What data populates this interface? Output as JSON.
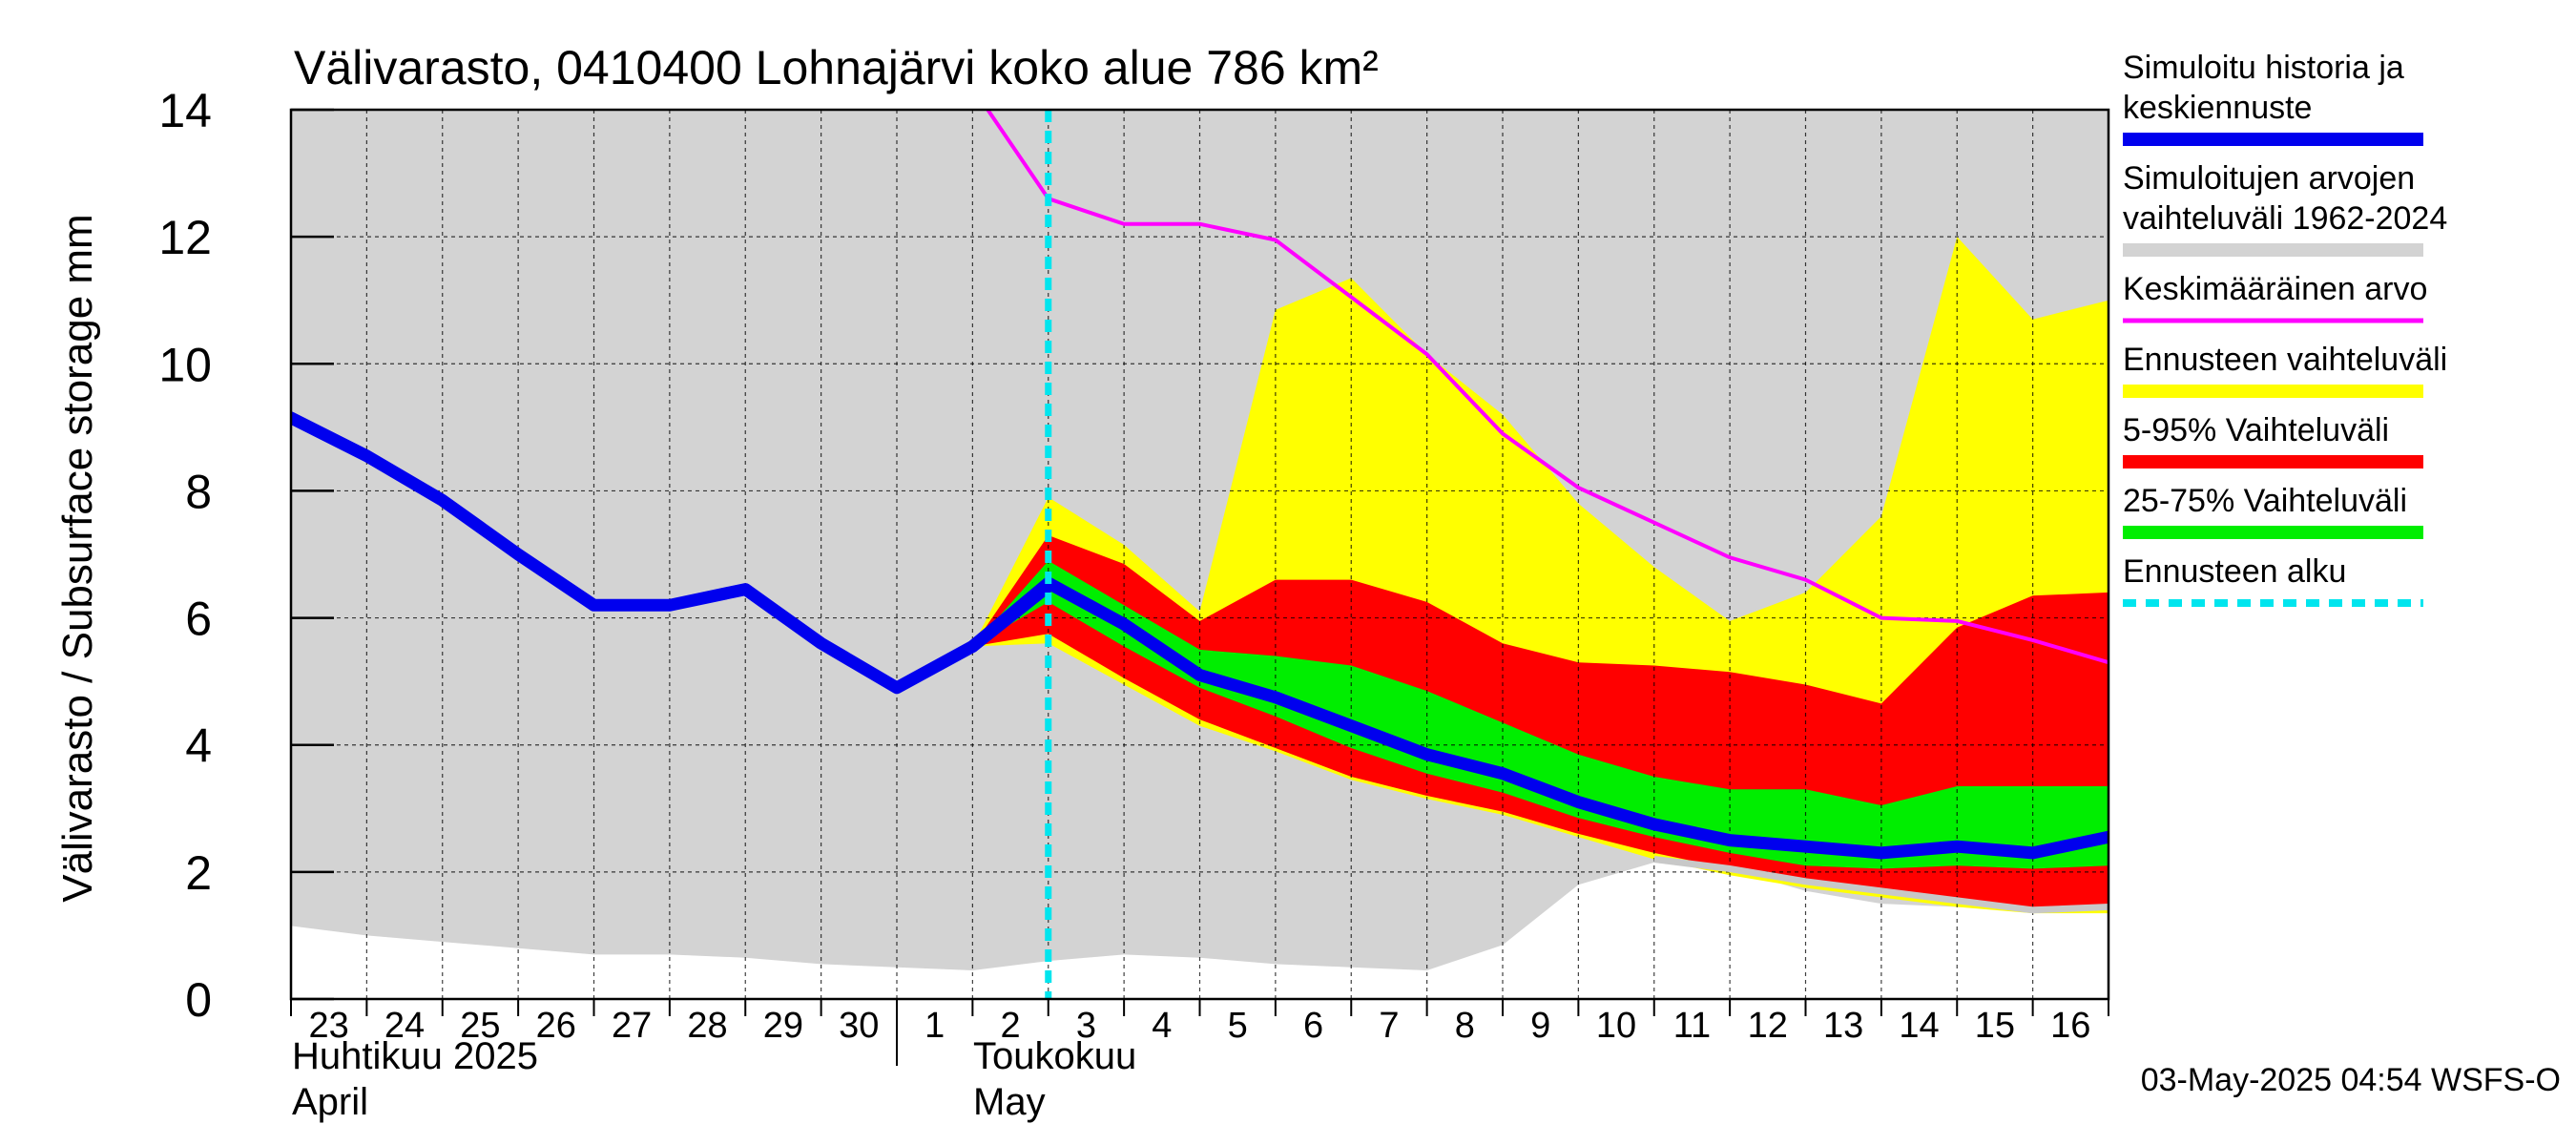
{
  "chart_data": {
    "type": "area",
    "title": "Välivarasto, 0410400 Lohnajärvi koko alue 786 km²",
    "ylabel": "Välivarasto / Subsurface storage  mm",
    "ylim": [
      0,
      14
    ],
    "yticks": [
      0,
      2,
      4,
      6,
      8,
      10,
      12,
      14
    ],
    "x_day_index_range": [
      0,
      24
    ],
    "x_tick_labels": [
      "23",
      "24",
      "25",
      "26",
      "27",
      "28",
      "29",
      "30",
      "1",
      "2",
      "3",
      "4",
      "5",
      "6",
      "7",
      "8",
      "9",
      "10",
      "11",
      "12",
      "13",
      "14",
      "15",
      "16"
    ],
    "month_labels": {
      "april_fi": "Huhtikuu  2025",
      "april_en": "April",
      "may_fi": "Toukokuu",
      "may_en": "May"
    },
    "month_boundary_day": 8,
    "forecast_start_day": 10,
    "timestamp": "03-May-2025 04:54 WSFS-O",
    "colors": {
      "history_range": "#d3d3d3",
      "forecast_range": "#ffff00",
      "p5_95": "#ff0000",
      "p25_75": "#00ee00",
      "median": "#0000ee",
      "mean": "#ff00ff",
      "forecast_start": "#00e5ee",
      "min_line": "#c8c8c8"
    },
    "legend": [
      {
        "label": "Simuloitu historia ja keskiennuste",
        "color": "#0000ee",
        "style": "thick"
      },
      {
        "label": "Simuloitujen arvojen vaihteluväli 1962-2024",
        "color": "#d3d3d3",
        "style": "thick"
      },
      {
        "label": "Keskimääräinen arvo",
        "color": "#ff00ff",
        "style": "thin"
      },
      {
        "label": "Ennusteen vaihteluväli",
        "color": "#ffff00",
        "style": "thick"
      },
      {
        "label": "5-95% Vaihteluväli",
        "color": "#ff0000",
        "style": "thick"
      },
      {
        "label": "25-75% Vaihteluväli",
        "color": "#00ee00",
        "style": "thick"
      },
      {
        "label": "Ennusteen alku",
        "color": "#00e5ee",
        "style": "dashed"
      }
    ],
    "series": {
      "history_range": {
        "x": [
          0,
          1,
          2,
          3,
          4,
          5,
          6,
          7,
          8,
          9,
          10,
          11,
          12,
          13,
          14,
          15,
          16,
          17,
          18,
          19,
          20,
          21,
          22,
          23,
          24
        ],
        "lower": [
          1.15,
          1.0,
          0.9,
          0.8,
          0.7,
          0.7,
          0.65,
          0.55,
          0.5,
          0.45,
          0.6,
          0.7,
          0.65,
          0.55,
          0.5,
          0.45,
          0.85,
          1.8,
          2.15,
          2.05,
          1.7,
          1.5,
          1.45,
          1.4,
          1.5
        ],
        "upper": [
          14,
          14,
          14,
          14,
          14,
          14,
          14,
          14,
          14,
          14,
          14,
          14,
          14,
          14,
          14,
          14,
          14,
          14,
          14,
          14,
          14,
          14,
          14,
          14,
          14
        ]
      },
      "history_median": {
        "x": [
          0,
          1,
          2,
          3,
          4,
          5,
          6,
          7,
          8,
          9,
          10
        ],
        "y": [
          9.15,
          8.55,
          7.85,
          7.0,
          6.2,
          6.2,
          6.45,
          5.6,
          4.9,
          5.55,
          6.5
        ]
      },
      "forecast_range": {
        "x": [
          9,
          10,
          11,
          12,
          13,
          14,
          15,
          16,
          17,
          18,
          19,
          20,
          21,
          22,
          23,
          24
        ],
        "lower": [
          5.55,
          5.6,
          4.95,
          4.3,
          3.9,
          3.45,
          3.15,
          2.9,
          2.55,
          2.2,
          1.95,
          1.75,
          1.6,
          1.45,
          1.35,
          1.35
        ],
        "upper": [
          5.55,
          7.9,
          7.15,
          6.1,
          10.85,
          11.35,
          10.15,
          9.2,
          7.8,
          6.8,
          5.95,
          6.4,
          7.6,
          12.0,
          10.7,
          11.0
        ]
      },
      "p5_95": {
        "x": [
          9,
          10,
          11,
          12,
          13,
          14,
          15,
          16,
          17,
          18,
          19,
          20,
          21,
          22,
          23,
          24
        ],
        "lower": [
          5.55,
          5.75,
          5.05,
          4.4,
          3.95,
          3.5,
          3.2,
          2.95,
          2.6,
          2.3,
          2.05,
          1.85,
          1.7,
          1.55,
          1.45,
          1.4
        ],
        "upper": [
          5.55,
          7.3,
          6.85,
          5.95,
          6.6,
          6.6,
          6.25,
          5.6,
          5.3,
          5.25,
          5.15,
          4.95,
          4.65,
          5.85,
          6.35,
          6.4
        ]
      },
      "p25_75": {
        "x": [
          9,
          10,
          11,
          12,
          13,
          14,
          15,
          16,
          17,
          18,
          19,
          20,
          21,
          22,
          23,
          24
        ],
        "lower": [
          5.55,
          6.25,
          5.55,
          4.9,
          4.45,
          3.95,
          3.55,
          3.25,
          2.85,
          2.55,
          2.3,
          2.1,
          2.05,
          2.1,
          2.05,
          2.1
        ],
        "upper": [
          5.55,
          6.9,
          6.2,
          5.5,
          5.4,
          5.25,
          4.85,
          4.35,
          3.85,
          3.5,
          3.3,
          3.3,
          3.05,
          3.35,
          3.35,
          3.35
        ]
      },
      "forecast_median": {
        "x": [
          9,
          10,
          11,
          12,
          13,
          14,
          15,
          16,
          17,
          18,
          19,
          20,
          21,
          22,
          23,
          24
        ],
        "y": [
          5.55,
          6.55,
          5.9,
          5.1,
          4.75,
          4.3,
          3.85,
          3.55,
          3.1,
          2.75,
          2.5,
          2.4,
          2.3,
          2.4,
          2.3,
          2.55
        ]
      },
      "mean": {
        "x": [
          9.2,
          10,
          11,
          12,
          13,
          14,
          15,
          16,
          17,
          18,
          19,
          20,
          21,
          22,
          23,
          24
        ],
        "y": [
          14.0,
          12.6,
          12.2,
          12.2,
          11.95,
          11.05,
          10.15,
          8.9,
          8.05,
          7.5,
          6.95,
          6.6,
          6.0,
          5.95,
          5.65,
          5.3
        ]
      },
      "min_line": {
        "x": [
          18,
          19,
          20,
          21,
          22,
          23,
          24
        ],
        "y": [
          2.2,
          2.05,
          1.85,
          1.7,
          1.55,
          1.4,
          1.45
        ]
      }
    }
  }
}
